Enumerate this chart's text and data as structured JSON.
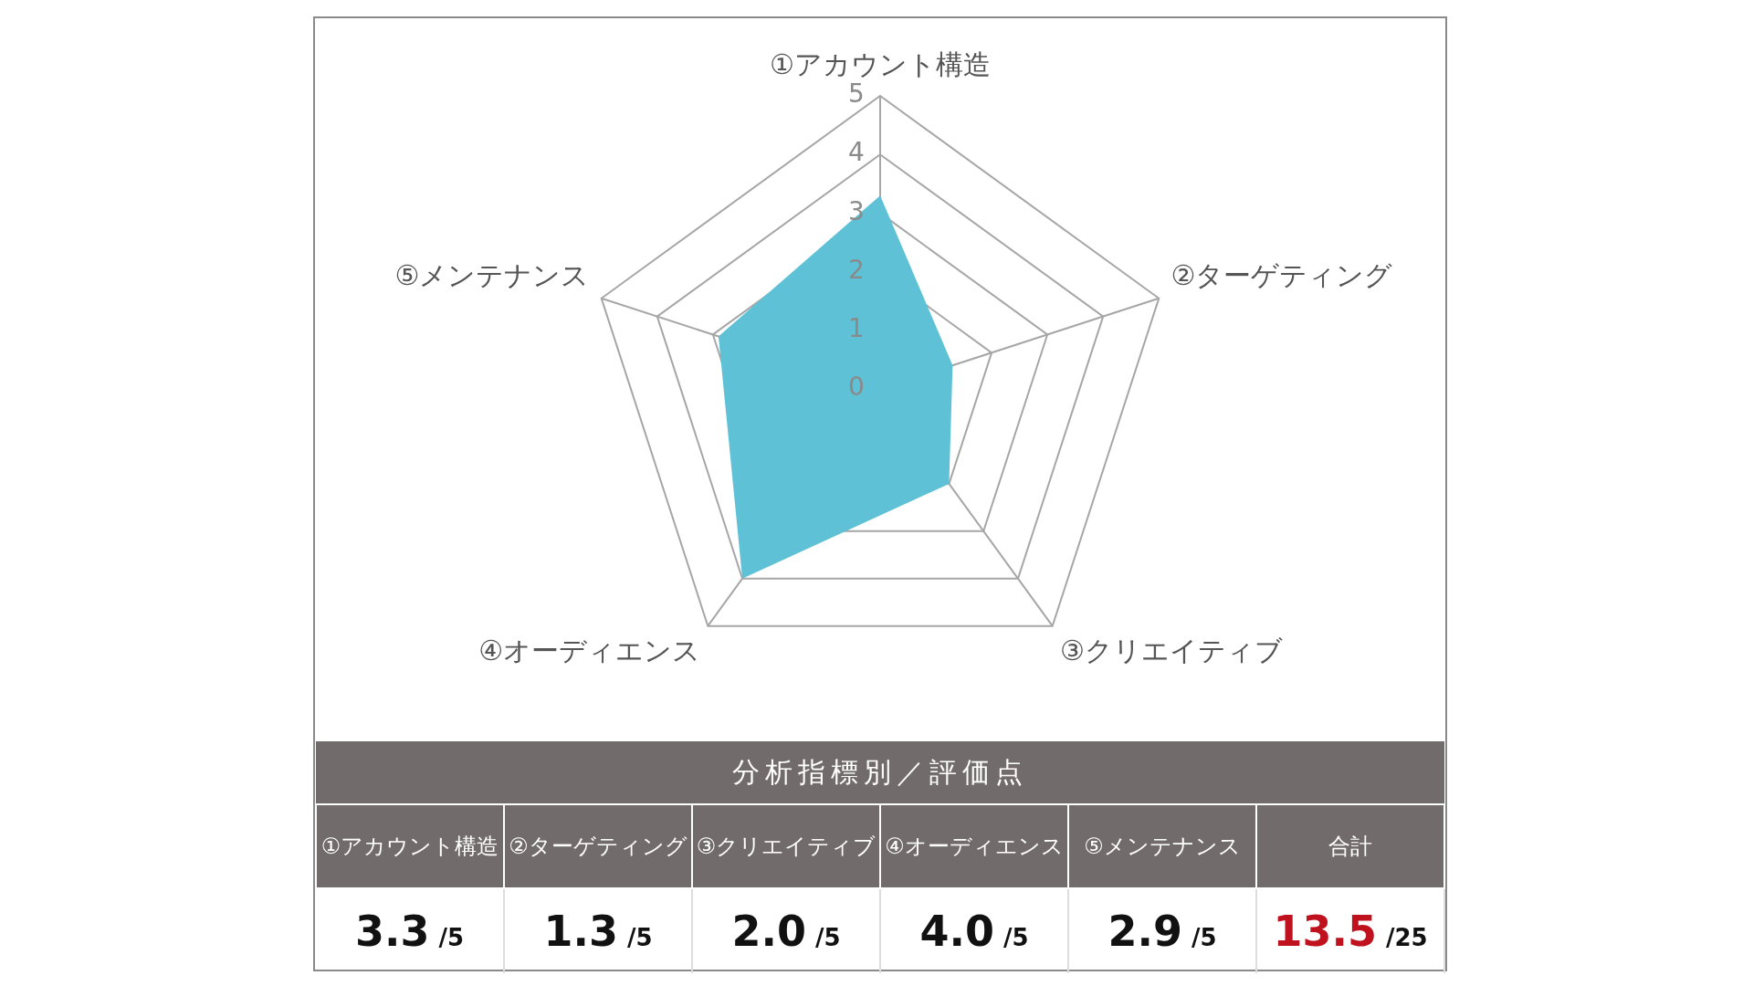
{
  "chart_data": {
    "type": "radar",
    "categories": [
      "①アカウント構造",
      "②ターゲティング",
      "③クリエイティブ",
      "④オーディエンス",
      "⑤メンテナンス"
    ],
    "series": [
      {
        "color": "#5fc1d5",
        "values": [
          3.3,
          1.3,
          2.0,
          4.0,
          2.9
        ]
      }
    ],
    "value_labels": [
      "3.3",
      "1.3",
      "2.0",
      "4.0",
      "2.9"
    ],
    "ylim": [
      0,
      5
    ],
    "yticks": [
      0,
      1,
      2,
      3,
      4,
      5
    ],
    "grid": true,
    "legend": false,
    "marker": "none",
    "annotations": [
      "分析指標別／評価点",
      "合計",
      "/5",
      "13.5",
      "/25"
    ]
  }
}
